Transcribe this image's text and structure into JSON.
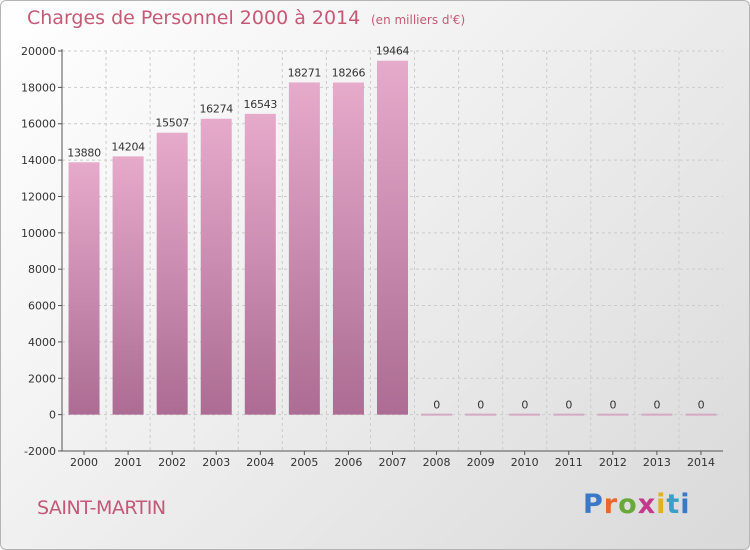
{
  "title": "Charges de Personnel 2000 à 2014",
  "subtitle": "(en milliers d'€)",
  "commune": "SAINT-MARTIN",
  "logo": {
    "text": "Proxiti",
    "colors": [
      "#3a78c8",
      "#e8682a",
      "#6aa83a",
      "#c23a8a",
      "#e2b023",
      "#3aa0c8"
    ]
  },
  "colors": {
    "bar_top": "#e6aacb",
    "bar_bottom": "#ac6c93",
    "zero_bar": "#d4a9c2",
    "title": "#c65a74",
    "text": "#333333",
    "grid": "#cccccc"
  },
  "chart_data": {
    "type": "bar",
    "title": "Charges de Personnel 2000 à 2014",
    "subtitle": "(en milliers d'€)",
    "categories": [
      "2000",
      "2001",
      "2002",
      "2003",
      "2004",
      "2005",
      "2006",
      "2007",
      "2008",
      "2009",
      "2010",
      "2011",
      "2012",
      "2013",
      "2014"
    ],
    "values": [
      13880,
      14204,
      15507,
      16274,
      16543,
      18271,
      18266,
      19464,
      0,
      0,
      0,
      0,
      0,
      0,
      0
    ],
    "data_labels": [
      "13880",
      "14204",
      "15507",
      "16274",
      "16543",
      "18271",
      "18266",
      "19464",
      "0",
      "0",
      "0",
      "0",
      "0",
      "0",
      "0"
    ],
    "yticks": [
      -2000,
      0,
      2000,
      4000,
      6000,
      8000,
      10000,
      12000,
      14000,
      16000,
      18000,
      20000
    ],
    "ylim": [
      -2000,
      20000
    ],
    "xlabel": "",
    "ylabel": "",
    "grid": "horizontal dashed",
    "legend": "none"
  }
}
